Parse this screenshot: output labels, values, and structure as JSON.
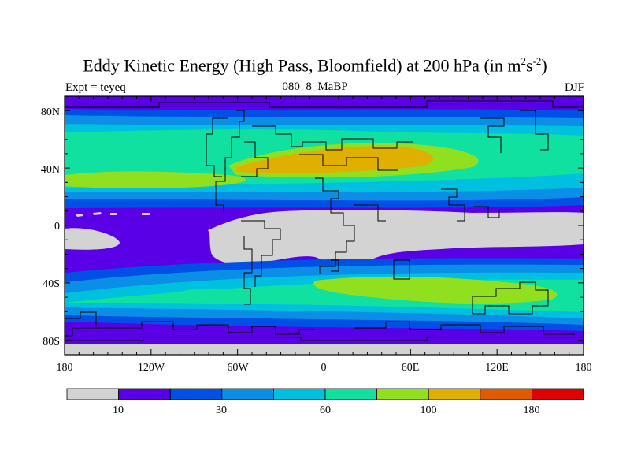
{
  "title": {
    "main": "Eddy Kinetic Energy (High Pass, Bloomfield) at 200 hPa (in m",
    "sup1": "2",
    "mid": "s",
    "sup2": "-2",
    "end": ")"
  },
  "subtitle": "080_8_MaBP",
  "left_label": "Expt = teyeq",
  "right_label": "DJF",
  "map": {
    "lat_ticks": [
      "80N",
      "40N",
      "0",
      "40S",
      "80S"
    ],
    "lon_ticks": [
      "180",
      "120W",
      "60W",
      "0",
      "60E",
      "120E",
      "180"
    ],
    "fill_levels": [
      "#d3d3d3",
      "#5a00e6",
      "#0050e6",
      "#0a8ee6",
      "#00c0e0",
      "#10e0a0",
      "#90e020",
      "#e0b000",
      "#e05a00",
      "#e00000"
    ]
  },
  "colorbar": {
    "colors": [
      "#d3d3d3",
      "#5a00e6",
      "#0050e6",
      "#0a8ee6",
      "#00c0e0",
      "#10e0a0",
      "#90e020",
      "#e0b000",
      "#e05a00",
      "#e00000"
    ],
    "labels": [
      "10",
      "30",
      "60",
      "100",
      "180"
    ]
  }
}
